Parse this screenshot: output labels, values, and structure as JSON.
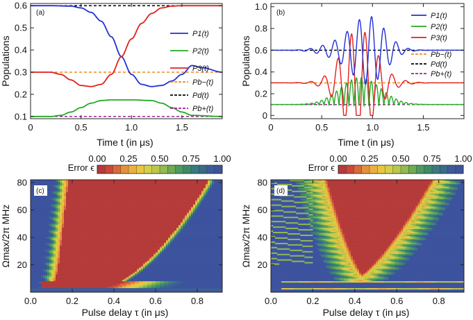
{
  "chart_data": [
    {
      "type": "line",
      "panel": "(a)",
      "xlabel": "Time t (in μs)",
      "ylabel": "Populations",
      "xlim": [
        0,
        1.9
      ],
      "ylim": [
        0.09,
        0.61
      ],
      "xticks": [
        "0",
        "0.5",
        "1.0",
        "1.5"
      ],
      "yticks": [
        "0.1",
        "0.2",
        "0.3",
        "0.4",
        "0.5",
        "0.6"
      ],
      "legend": [
        "P1(t)",
        "P2(t)",
        "P3(t)",
        "Pb−(t)",
        "Pd(t)",
        "Pb+(t)"
      ],
      "legend_position": "right",
      "series": [
        {
          "name": "P1(t)",
          "color": "#1f2fd6",
          "style": "solid",
          "x": [
            0,
            0.2,
            0.4,
            0.5,
            0.6,
            0.7,
            0.8,
            0.9,
            1.0,
            1.1,
            1.2,
            1.3,
            1.4,
            1.5,
            1.6,
            1.7,
            1.9
          ],
          "y": [
            0.6,
            0.6,
            0.598,
            0.59,
            0.57,
            0.53,
            0.46,
            0.37,
            0.29,
            0.245,
            0.235,
            0.24,
            0.26,
            0.29,
            0.33,
            0.32,
            0.3
          ]
        },
        {
          "name": "P2(t)",
          "color": "#22aa22",
          "style": "solid",
          "x": [
            0,
            0.2,
            0.3,
            0.4,
            0.5,
            0.6,
            0.7,
            0.8,
            1.0,
            1.2,
            1.3,
            1.4,
            1.5,
            1.6,
            1.9
          ],
          "y": [
            0.1,
            0.1,
            0.105,
            0.12,
            0.14,
            0.16,
            0.172,
            0.175,
            0.175,
            0.172,
            0.16,
            0.14,
            0.12,
            0.105,
            0.1
          ]
        },
        {
          "name": "P3(t)",
          "color": "#e0201c",
          "style": "solid",
          "x": [
            0,
            0.2,
            0.3,
            0.4,
            0.5,
            0.6,
            0.7,
            0.8,
            0.9,
            1.0,
            1.1,
            1.2,
            1.3,
            1.4,
            1.5,
            1.6,
            1.9
          ],
          "y": [
            0.3,
            0.3,
            0.29,
            0.265,
            0.24,
            0.235,
            0.245,
            0.29,
            0.37,
            0.45,
            0.52,
            0.565,
            0.59,
            0.598,
            0.6,
            0.6,
            0.6
          ]
        },
        {
          "name": "Pb−(t)",
          "color": "#f08a1a",
          "style": "dashed",
          "x": [
            0,
            1.9
          ],
          "y": [
            0.3,
            0.3
          ]
        },
        {
          "name": "Pd(t)",
          "color": "#000000",
          "style": "dashed",
          "x": [
            0,
            1.9
          ],
          "y": [
            0.6,
            0.6
          ]
        },
        {
          "name": "Pb+(t)",
          "color": "#9a209a",
          "style": "dashed",
          "x": [
            0,
            1.9
          ],
          "y": [
            0.1,
            0.1
          ]
        }
      ]
    },
    {
      "type": "line",
      "panel": "(b)",
      "xlabel": "Time t (in μs)",
      "ylabel": "Populations",
      "xlim": [
        0,
        1.9
      ],
      "ylim": [
        -0.03,
        1.03
      ],
      "xticks": [
        "0",
        "0.5",
        "1.0",
        "1.5"
      ],
      "yticks": [
        "0",
        "0.2",
        "0.4",
        "0.6",
        "0.8",
        "1.0"
      ],
      "legend": [
        "P1(t)",
        "P2(t)",
        "P3(t)",
        "Pb−(t)",
        "Pd(t)",
        "Pb+(t)"
      ],
      "legend_position": "top-right",
      "series": [
        {
          "name": "P1(t)",
          "color": "#1f2fd6",
          "style": "solid",
          "baseline": 0.6,
          "amplitude": 0.4
        },
        {
          "name": "P2(t)",
          "color": "#22aa22",
          "style": "solid",
          "baseline": 0.1,
          "amplitude": 0.27
        },
        {
          "name": "P3(t)",
          "color": "#e0201c",
          "style": "solid",
          "baseline": 0.3,
          "amplitude": 0.5
        },
        {
          "name": "Pb−(t)",
          "color": "#f08a1a",
          "style": "dashed",
          "x": [
            0,
            1.9
          ],
          "y": [
            0.3,
            0.3
          ]
        },
        {
          "name": "Pd(t)",
          "color": "#000000",
          "style": "dashed",
          "x": [
            0,
            1.9
          ],
          "y": [
            0.6,
            0.6
          ]
        },
        {
          "name": "Pb+(t)",
          "color": "#9a209a",
          "style": "dashed",
          "x": [
            0,
            1.9
          ],
          "y": [
            0.1,
            0.1
          ]
        }
      ]
    },
    {
      "type": "heatmap",
      "panel": "(c)",
      "xlabel": "Pulse delay τ (in μs)",
      "ylabel": "Ωmax/2π MHz",
      "xlim": [
        0,
        0.9
      ],
      "ylim": [
        0,
        80
      ],
      "xticks": [
        "0.0",
        "0.2",
        "0.4",
        "0.6",
        "0.8"
      ],
      "yticks": [
        "20",
        "40",
        "60",
        "80"
      ],
      "colorbar_label": "Error ϵ",
      "colorbar_ticks": [
        "0.00",
        "0.25",
        "0.50",
        "0.75",
        "1.00"
      ],
      "low_error_region": "red band between τ≈0.1 and a curved right boundary rising from τ≈0.3 at low Ω to τ≈0.85 at Ω=80"
    },
    {
      "type": "heatmap",
      "panel": "(d)",
      "xlabel": "Pulse delay τ (in μs)",
      "ylabel": "Ωmax/2π MHz",
      "xlim": [
        0,
        0.9
      ],
      "ylim": [
        0,
        80
      ],
      "xticks": [
        "0.0",
        "0.2",
        "0.4",
        "0.6",
        "0.8"
      ],
      "yticks": [
        "20",
        "40",
        "60",
        "80"
      ],
      "colorbar_label": "Error ϵ",
      "colorbar_ticks": [
        "0.00",
        "0.25",
        "0.50",
        "0.75",
        "1.00"
      ],
      "low_error_region": "red wedge with apex near τ≈0.43, Ω≈12 widening to τ≈0.25–0.78 at Ω=80"
    }
  ],
  "colormap": [
    "#b53a3a",
    "#c9493a",
    "#d86a3a",
    "#e3923c",
    "#eab13e",
    "#e8c63f",
    "#d5d04a",
    "#b9c94c",
    "#93bb4f",
    "#6dab55",
    "#4f9b5f",
    "#3f8a6b",
    "#3a7a7c",
    "#3a6a8c",
    "#3c5c99",
    "#3d539e"
  ]
}
